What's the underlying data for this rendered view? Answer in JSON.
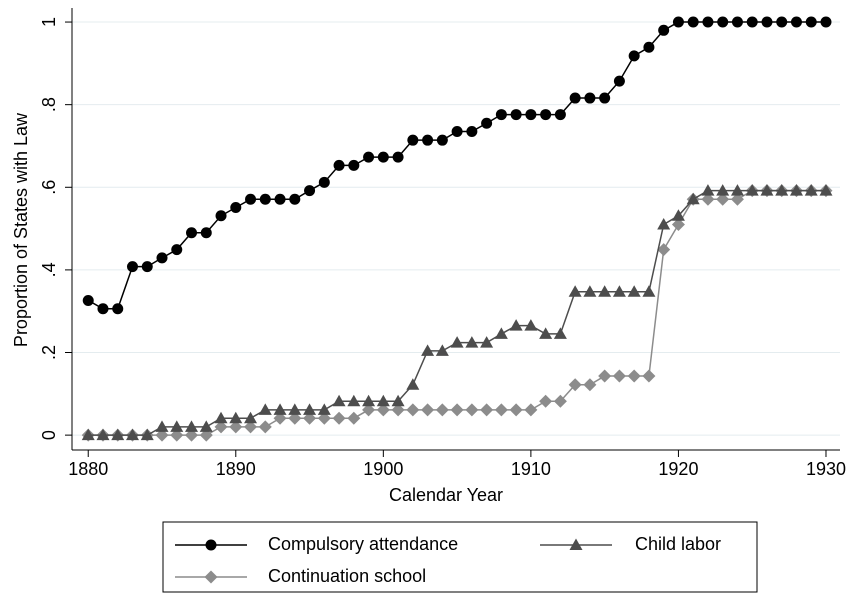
{
  "chart_data": {
    "type": "line",
    "xlabel": "Calendar Year",
    "ylabel": "Proportion of States with Law",
    "x": [
      1880,
      1881,
      1882,
      1883,
      1884,
      1885,
      1886,
      1887,
      1888,
      1889,
      1890,
      1891,
      1892,
      1893,
      1894,
      1895,
      1896,
      1897,
      1898,
      1899,
      1900,
      1901,
      1902,
      1903,
      1904,
      1905,
      1906,
      1907,
      1908,
      1909,
      1910,
      1911,
      1912,
      1913,
      1914,
      1915,
      1916,
      1917,
      1918,
      1919,
      1920,
      1921,
      1922,
      1923,
      1924,
      1925,
      1926,
      1927,
      1928,
      1929,
      1930
    ],
    "series": [
      {
        "name": "Compulsory attendance",
        "color": "#000000",
        "marker": "circle",
        "values": [
          0.326,
          0.306,
          0.306,
          0.408,
          0.408,
          0.429,
          0.449,
          0.49,
          0.49,
          0.531,
          0.551,
          0.571,
          0.571,
          0.571,
          0.571,
          0.592,
          0.612,
          0.653,
          0.653,
          0.673,
          0.673,
          0.673,
          0.714,
          0.714,
          0.714,
          0.735,
          0.735,
          0.755,
          0.776,
          0.776,
          0.776,
          0.776,
          0.776,
          0.816,
          0.816,
          0.816,
          0.857,
          0.918,
          0.939,
          0.98,
          1,
          1,
          1,
          1,
          1,
          1,
          1,
          1,
          1,
          1,
          1
        ]
      },
      {
        "name": "Child labor",
        "color": "#4d4d4d",
        "marker": "triangle",
        "values": [
          0,
          0,
          0,
          0,
          0,
          0.02,
          0.02,
          0.02,
          0.02,
          0.041,
          0.041,
          0.041,
          0.061,
          0.061,
          0.061,
          0.061,
          0.061,
          0.082,
          0.082,
          0.082,
          0.082,
          0.082,
          0.122,
          0.204,
          0.204,
          0.224,
          0.224,
          0.224,
          0.245,
          0.265,
          0.265,
          0.245,
          0.245,
          0.347,
          0.347,
          0.347,
          0.347,
          0.347,
          0.347,
          0.51,
          0.531,
          0.571,
          0.592,
          0.592,
          0.592,
          0.592,
          0.592,
          0.592,
          0.592,
          0.592,
          0.592
        ]
      },
      {
        "name": "Continuation school",
        "color": "#8c8c8c",
        "marker": "diamond",
        "values": [
          0,
          0,
          0,
          0,
          0,
          0,
          0,
          0,
          0,
          0.02,
          0.02,
          0.02,
          0.02,
          0.041,
          0.041,
          0.041,
          0.041,
          0.041,
          0.041,
          0.061,
          0.061,
          0.061,
          0.061,
          0.061,
          0.061,
          0.061,
          0.061,
          0.061,
          0.061,
          0.061,
          0.061,
          0.082,
          0.082,
          0.122,
          0.122,
          0.143,
          0.143,
          0.143,
          0.143,
          0.449,
          0.51,
          0.571,
          0.571,
          0.571,
          0.571,
          0.592,
          0.592,
          0.592,
          0.592,
          0.592,
          0.592
        ]
      }
    ],
    "xlim": [
      1878.9,
      1930.95
    ],
    "xticks": [
      1880,
      1890,
      1900,
      1910,
      1920,
      1930
    ],
    "ylim": [
      -0.036,
      1.034
    ],
    "yticks": [
      0,
      {
        "value": 0.2,
        "label": ".2"
      },
      {
        "value": 0.4,
        "label": ".4"
      },
      {
        "value": 0.6,
        "label": ".6"
      },
      {
        "value": 0.8,
        "label": ".8"
      },
      1
    ],
    "grid": true
  }
}
